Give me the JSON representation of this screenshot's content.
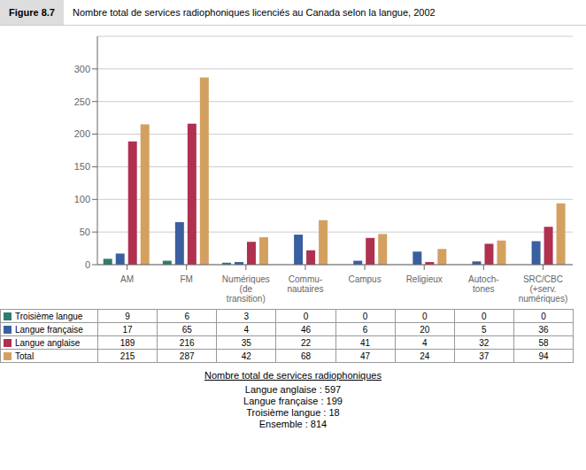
{
  "chart_data": {
    "type": "bar",
    "title": "Nombre total de services radiophoniques licenciés au Canada selon la langue, 2002",
    "annotations": [
      "Figure 8.7",
      "Nombre total de services radiophoniques",
      "Langue anglaise : 597",
      "Langue française : 199",
      "Troisième langue : 18",
      "Ensemble : 814"
    ],
    "categories": [
      "AM",
      "FM",
      "Numériques\n(de\ntransition)",
      "Commu-\nnautaires",
      "Campus",
      "Religieux",
      "Autoch-\ntones",
      "SRC/CBC\n(+serv.\nnumériques)"
    ],
    "series": [
      {
        "name": "Troisième langue",
        "color": "#2E7D6E",
        "values": [
          9,
          6,
          3,
          0,
          0,
          0,
          0,
          0
        ]
      },
      {
        "name": "Langue française",
        "color": "#3A5FA0",
        "values": [
          17,
          65,
          4,
          46,
          6,
          20,
          5,
          36
        ]
      },
      {
        "name": "Langue anglaise",
        "color": "#B03050",
        "values": [
          189,
          216,
          35,
          22,
          41,
          4,
          32,
          58
        ]
      },
      {
        "name": "Total",
        "color": "#D4A060",
        "values": [
          215,
          287,
          42,
          68,
          47,
          24,
          37,
          94
        ]
      }
    ],
    "ylim": [
      0,
      350
    ],
    "yticks": [
      0,
      50,
      100,
      150,
      200,
      250,
      300
    ],
    "grid": true
  }
}
